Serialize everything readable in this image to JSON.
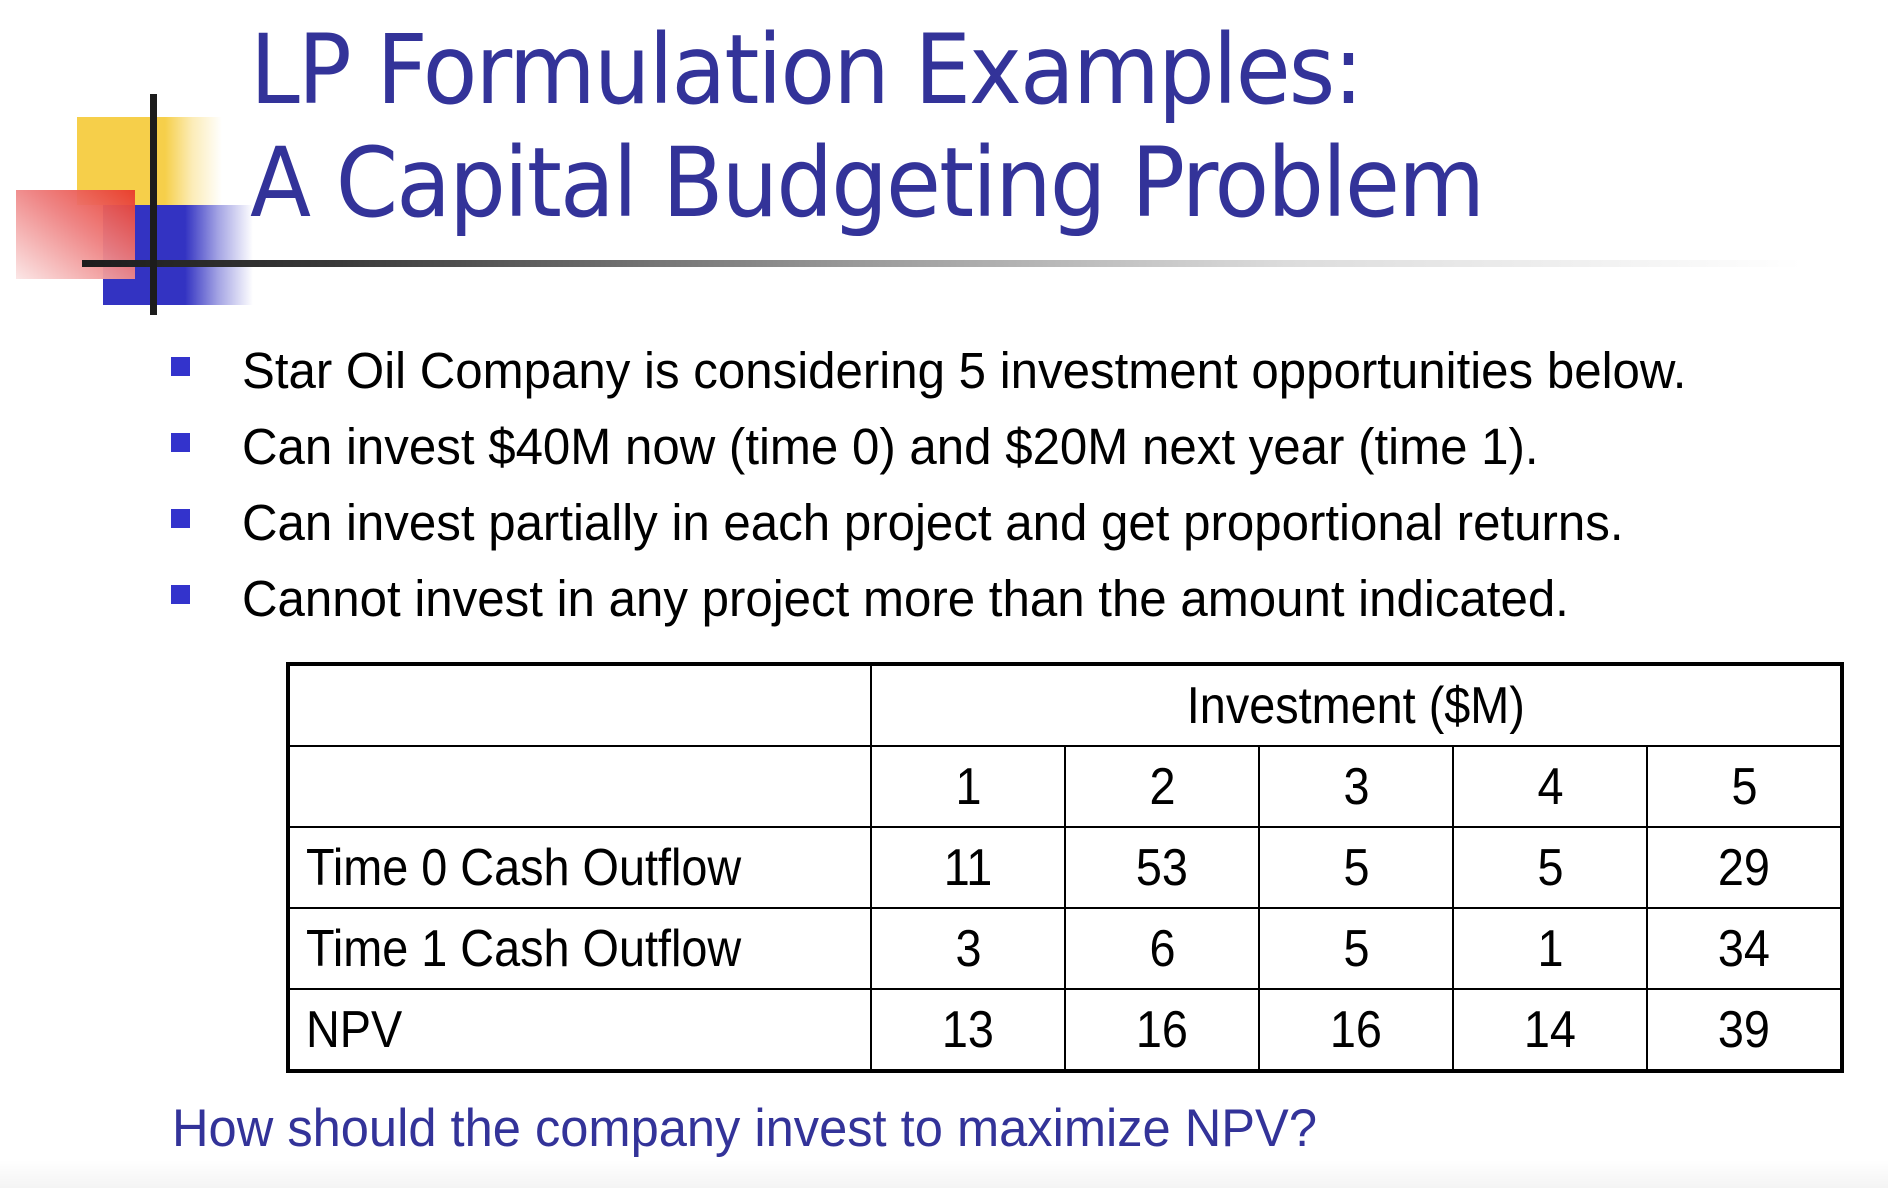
{
  "slide": {
    "title_line1": "LP Formulation Examples:",
    "title_line2": "A Capital Budgeting Problem",
    "title_color": "#333399",
    "bullet_color": "#3333cc",
    "bullets": [
      "Star Oil Company is considering 5 investment opportunities below.",
      "Can invest $40M now (time 0) and $20M next year (time 1).",
      "Can invest partially in each project and get proportional returns.",
      "Cannot invest in any project more than the amount indicated."
    ],
    "table": {
      "group_header": "Investment ($M)",
      "columns": [
        "1",
        "2",
        "3",
        "4",
        "5"
      ],
      "rows": [
        {
          "label": "Time 0 Cash Outflow",
          "values": [
            "11",
            "53",
            "5",
            "5",
            "29"
          ]
        },
        {
          "label": "Time 1 Cash Outflow",
          "values": [
            "3",
            "6",
            "5",
            "1",
            "34"
          ]
        },
        {
          "label": "NPV",
          "values": [
            "13",
            "16",
            "16",
            "14",
            "39"
          ]
        }
      ]
    },
    "question": "How should the company invest to maximize NPV?"
  }
}
